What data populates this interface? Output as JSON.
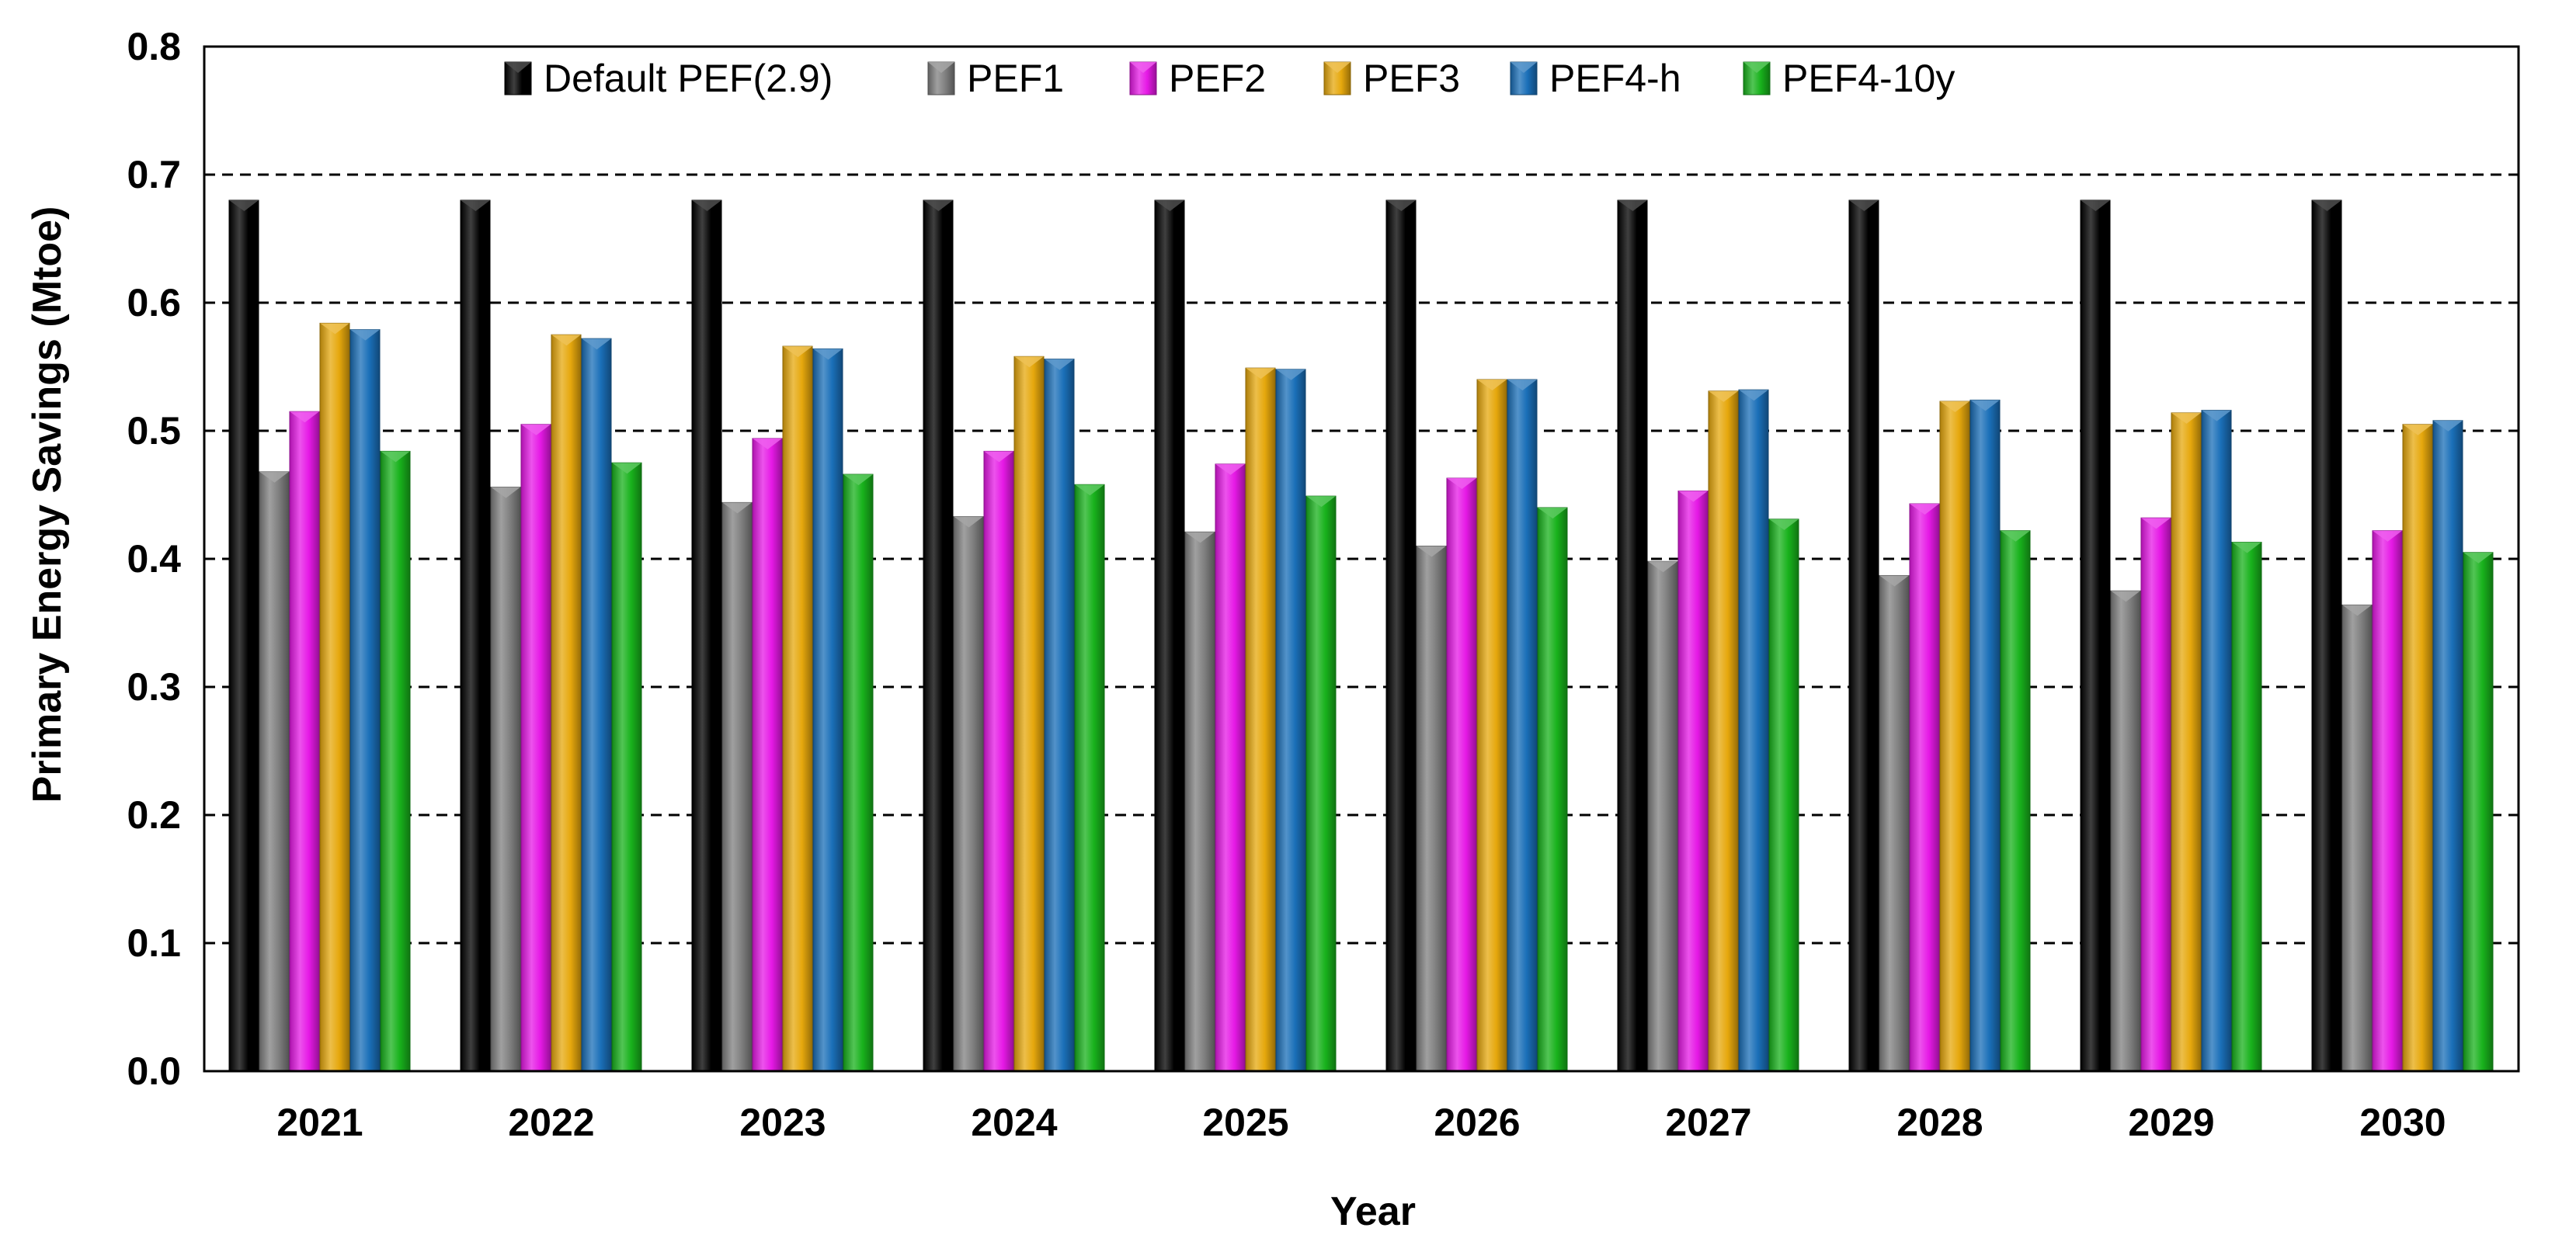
{
  "chart_data": {
    "type": "bar",
    "title": "",
    "xlabel": "Year",
    "ylabel": "Primary Energy Savings (Mtoe)",
    "ylim": [
      0,
      0.8
    ],
    "yticks": [
      "0.0",
      "0.1",
      "0.2",
      "0.3",
      "0.4",
      "0.5",
      "0.6",
      "0.7",
      "0.8"
    ],
    "grid": "horizontal dashed",
    "legend_position": "top",
    "categories": [
      "2021",
      "2022",
      "2023",
      "2024",
      "2025",
      "2026",
      "2027",
      "2028",
      "2029",
      "2030"
    ],
    "series": [
      {
        "name": "Default PEF(2.9)",
        "color": "#000000",
        "values": [
          0.68,
          0.68,
          0.68,
          0.68,
          0.68,
          0.68,
          0.68,
          0.68,
          0.68,
          0.68
        ]
      },
      {
        "name": "PEF1",
        "color": "#808080",
        "values": [
          0.468,
          0.456,
          0.444,
          0.433,
          0.421,
          0.41,
          0.398,
          0.387,
          0.375,
          0.364
        ]
      },
      {
        "name": "PEF2",
        "color": "#e619e6",
        "values": [
          0.515,
          0.505,
          0.494,
          0.484,
          0.474,
          0.463,
          0.453,
          0.443,
          0.432,
          0.422
        ]
      },
      {
        "name": "PEF3",
        "color": "#e6a80d",
        "values": [
          0.584,
          0.575,
          0.566,
          0.558,
          0.549,
          0.54,
          0.531,
          0.523,
          0.514,
          0.505
        ]
      },
      {
        "name": "PEF4-h",
        "color": "#1a6fb8",
        "values": [
          0.579,
          0.572,
          0.564,
          0.556,
          0.548,
          0.54,
          0.532,
          0.524,
          0.516,
          0.508
        ]
      },
      {
        "name": "PEF4-10y",
        "color": "#18b21c",
        "values": [
          0.484,
          0.475,
          0.466,
          0.458,
          0.449,
          0.44,
          0.431,
          0.422,
          0.413,
          0.405
        ]
      }
    ]
  }
}
